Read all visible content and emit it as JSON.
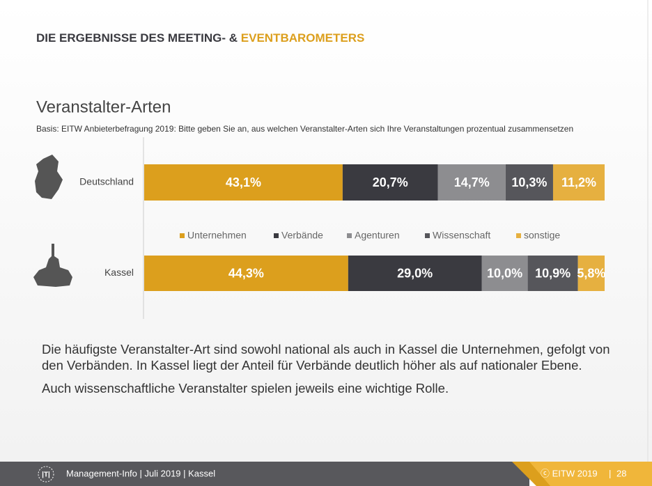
{
  "header": {
    "title_part1": "DIE ERGEBNISSE DES MEETING- & ",
    "title_part2": "EVENTBAROMETERS"
  },
  "chart_data": {
    "type": "stacked-bar-horizontal",
    "title": "Veranstalter-Arten",
    "subtitle": "Basis: EITW Anbieterbefragung 2019: Bitte geben Sie an, aus welchen Veranstalter-Arten sich Ihre Veranstaltungen prozentual zusammensetzen",
    "categories": [
      "Deutschland",
      "Kassel"
    ],
    "xlim": [
      0,
      100
    ],
    "series": [
      {
        "name": "Unternehmen",
        "color": "#dc9f1d",
        "values": [
          43.1,
          44.3
        ],
        "value_labels": [
          "43,1%",
          "44,3%"
        ]
      },
      {
        "name": "Verbände",
        "color": "#3a3a40",
        "values": [
          20.7,
          29.0
        ],
        "value_labels": [
          "20,7%",
          "29,0%"
        ]
      },
      {
        "name": "Agenturen",
        "color": "#8d8d90",
        "values": [
          14.7,
          10.0
        ],
        "value_labels": [
          "14,7%",
          "10,0%"
        ]
      },
      {
        "name": "Wissenschaft",
        "color": "#56565b",
        "values": [
          10.3,
          10.9
        ],
        "value_labels": [
          "10,3%",
          "10,9%"
        ]
      },
      {
        "name": "sonstige",
        "color": "#e6b040",
        "values": [
          11.2,
          5.8
        ],
        "value_labels": [
          "11,2%",
          "5,8%"
        ]
      }
    ]
  },
  "body": {
    "paragraphs": [
      "Die häufigste Veranstalter-Art sind sowohl national als auch in Kassel die Unternehmen, gefolgt von den Verbänden. In Kassel liegt der Anteil für Verbände deutlich höher als auf nationaler Ebene.",
      "Auch wissenschaftliche Veranstalter spielen jeweils eine wichtige Rolle."
    ]
  },
  "footer": {
    "left": "Management-Info | Juli 2019 | Kassel",
    "copyright": "ⓒ EITW 2019",
    "page": "28"
  }
}
